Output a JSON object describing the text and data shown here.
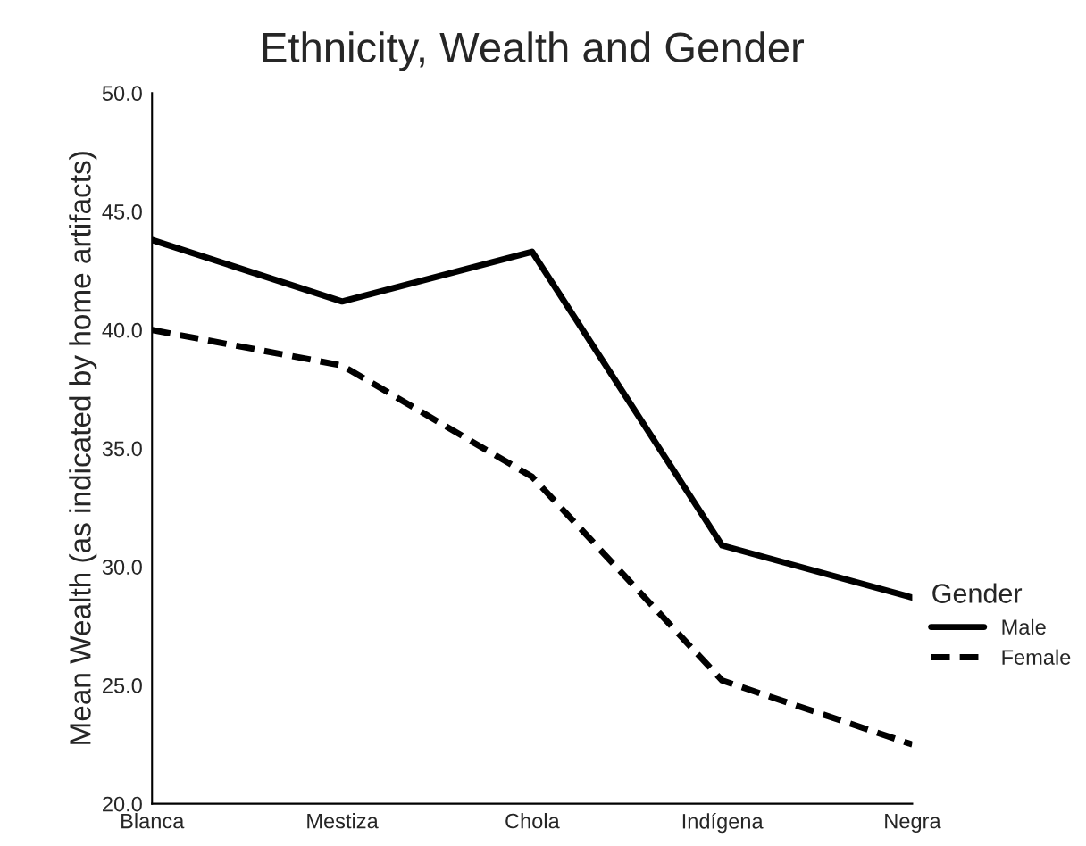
{
  "chart_data": {
    "type": "line",
    "title": "Ethnicity, Wealth and Gender",
    "ylabel": "Mean Wealth (as indicated by home artifacts)",
    "categories": [
      "Blanca",
      "Mestiza",
      "Chola",
      "Indígena",
      "Negra"
    ],
    "series": [
      {
        "name": "Male",
        "color": "#000000",
        "line_style": "solid",
        "values": [
          43.8,
          41.2,
          43.3,
          30.9,
          28.7
        ]
      },
      {
        "name": "Female",
        "color": "#000000",
        "line_style": "dashed",
        "values": [
          40.0,
          38.5,
          33.8,
          25.2,
          22.5
        ]
      }
    ],
    "ylim": [
      20,
      50
    ],
    "yticks": [
      {
        "value": 20,
        "label": "20.0"
      },
      {
        "value": 25,
        "label": "25.0"
      },
      {
        "value": 30,
        "label": "30.0"
      },
      {
        "value": 35,
        "label": "35.0"
      },
      {
        "value": 40,
        "label": "40.0"
      },
      {
        "value": 45,
        "label": "45.0"
      },
      {
        "value": 50,
        "label": "50.0"
      }
    ],
    "legend": "right",
    "legend_title": "Gender",
    "grid": false,
    "marker": "none"
  }
}
